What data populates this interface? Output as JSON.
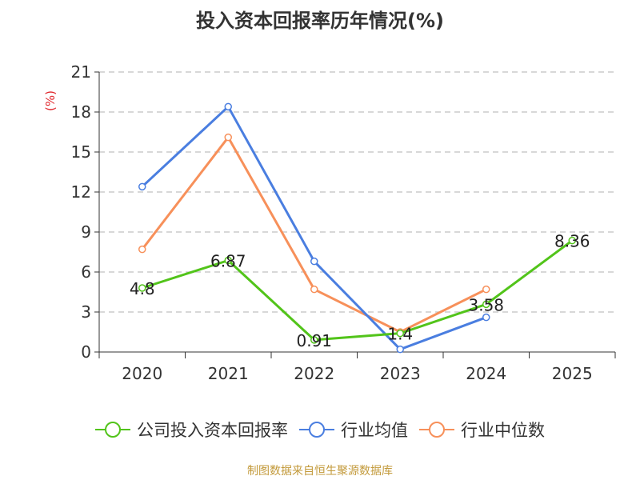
{
  "chart_data": {
    "type": "line",
    "title": "投入资本回报率历年情况(%)",
    "ylabel": "(%)",
    "xlabel": "",
    "categories": [
      "2020",
      "2021",
      "2022",
      "2023",
      "2024",
      "2025"
    ],
    "ylim": [
      0,
      21
    ],
    "yticks": [
      0,
      3,
      6,
      9,
      12,
      15,
      18,
      21
    ],
    "grid": true,
    "legend_position": "bottom",
    "series": [
      {
        "name": "公司投入资本回报率",
        "color": "#52c41a",
        "values": [
          4.8,
          6.87,
          0.91,
          1.4,
          3.58,
          8.36
        ],
        "labels": [
          "4.8",
          "6.87",
          "0.91",
          "1.4",
          "3.58",
          "8.36"
        ]
      },
      {
        "name": "行业均值",
        "color": "#4a7ee0",
        "values": [
          12.4,
          18.4,
          6.8,
          0.2,
          2.6,
          null
        ]
      },
      {
        "name": "行业中位数",
        "color": "#f7905a",
        "values": [
          7.7,
          16.1,
          4.7,
          1.5,
          4.7,
          null
        ]
      }
    ]
  },
  "ylabel_color": "#e0262c",
  "source_text": "制图数据来自恒生聚源数据库",
  "source_color": "#c39a3b"
}
